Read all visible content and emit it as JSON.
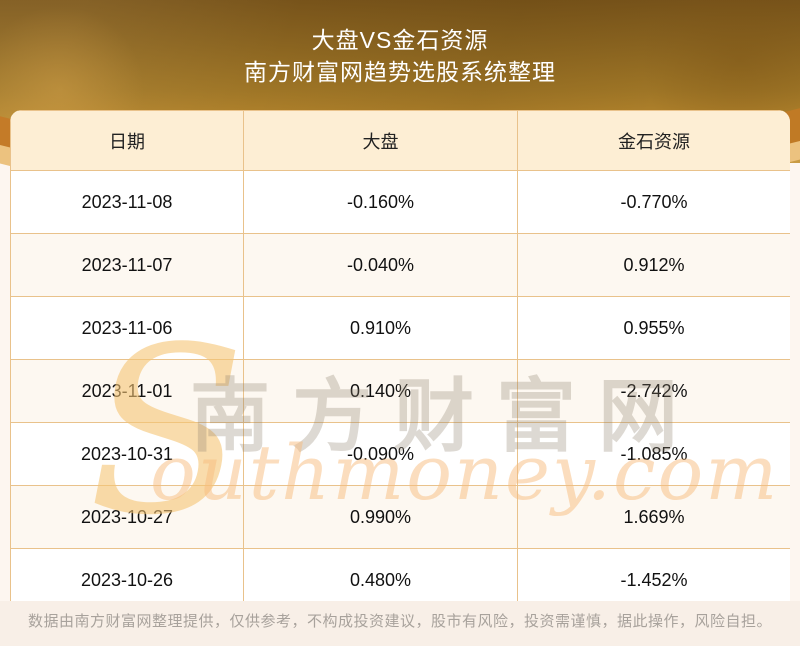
{
  "header": {
    "title": "大盘VS金石资源",
    "subtitle": "南方财富网趋势选股系统整理"
  },
  "table": {
    "columns": [
      "日期",
      "大盘",
      "金石资源"
    ],
    "rows": [
      [
        "2023-11-08",
        "-0.160%",
        "-0.770%"
      ],
      [
        "2023-11-07",
        "-0.040%",
        "0.912%"
      ],
      [
        "2023-11-06",
        "0.910%",
        "0.955%"
      ],
      [
        "2023-11-01",
        "0.140%",
        "-2.742%"
      ],
      [
        "2023-10-31",
        "-0.090%",
        "-1.085%"
      ],
      [
        "2023-10-27",
        "0.990%",
        "1.669%"
      ],
      [
        "2023-10-26",
        "0.480%",
        "-1.452%"
      ]
    ]
  },
  "chart_data": {
    "type": "table",
    "title": "大盘VS金石资源",
    "subtitle": "南方财富网趋势选股系统整理",
    "columns": [
      "日期",
      "大盘",
      "金石资源"
    ],
    "categories": [
      "2023-11-08",
      "2023-11-07",
      "2023-11-06",
      "2023-11-01",
      "2023-10-31",
      "2023-10-27",
      "2023-10-26"
    ],
    "series": [
      {
        "name": "大盘",
        "values": [
          -0.16,
          -0.04,
          0.91,
          0.14,
          -0.09,
          0.99,
          0.48
        ],
        "unit": "%"
      },
      {
        "name": "金石资源",
        "values": [
          -0.77,
          0.912,
          0.955,
          -2.742,
          -1.085,
          1.669,
          -1.452
        ],
        "unit": "%"
      }
    ]
  },
  "watermark": {
    "swoosh": "S",
    "cn": "南方财富网",
    "en": "outhmoney.com"
  },
  "footer": {
    "disclaimer": "数据由南方财富网整理提供，仅供参考，不构成投资建议，股市有风险，投资需谨慎，据此操作，风险自担。"
  },
  "colors": {
    "header_gradient_top": "#77531a",
    "header_gradient_bottom": "#c99c46",
    "table_header_bg": "#fdeed4",
    "row_alt_bg": "#fdf8f1",
    "cell_border": "#e9c28b",
    "page_bg": "#fdf6f0",
    "footer_bg": "#f8efe7",
    "footer_text": "#a8a29c",
    "title_text": "#ffffff",
    "body_text": "#111111"
  }
}
